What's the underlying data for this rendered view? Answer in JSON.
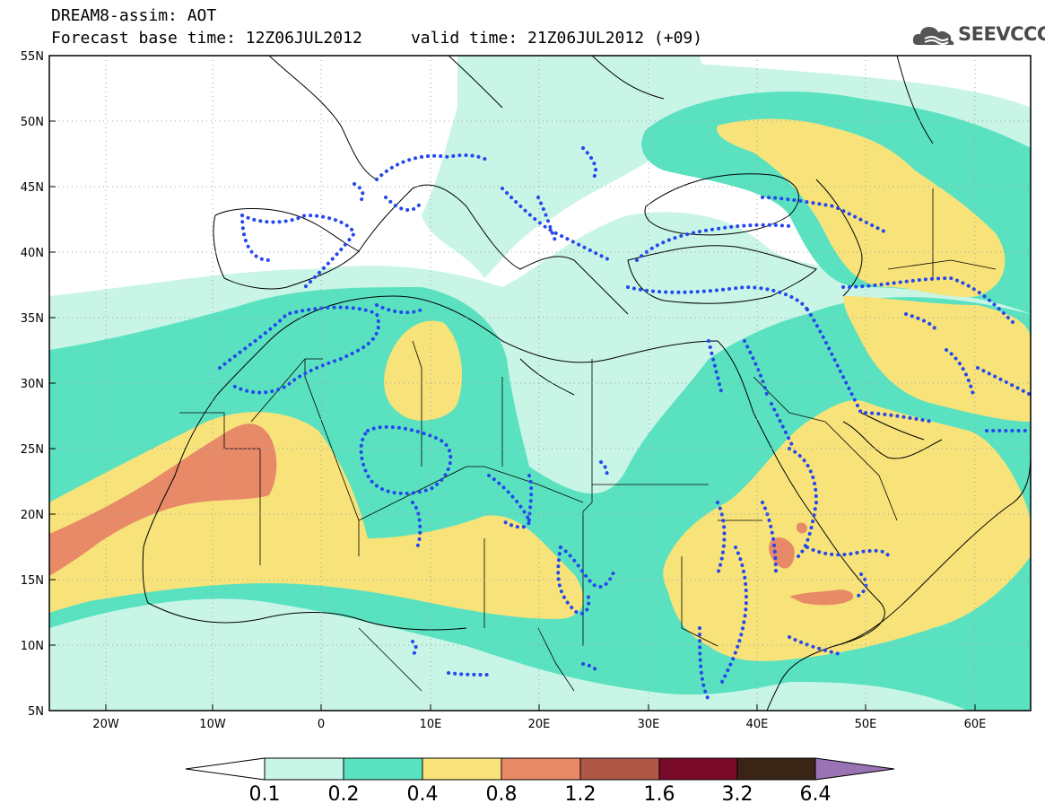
{
  "header": {
    "line1": "DREAM8-assim: AOT",
    "line2": "Forecast base time: 12Z06JUL2012     valid time: 21Z06JUL2012 (+09)",
    "logo_text": "SEEVCCC"
  },
  "map": {
    "lat_range": [
      5,
      55
    ],
    "lon_range": [
      -25,
      65
    ],
    "lat_labels": [
      "55N",
      "50N",
      "45N",
      "40N",
      "35N",
      "30N",
      "25N",
      "20N",
      "15N",
      "10N",
      "5N"
    ],
    "lon_labels": [
      "20W",
      "10W",
      "0",
      "10E",
      "20E",
      "30E",
      "40E",
      "50E",
      "60E"
    ],
    "grid": "dotted"
  },
  "legend": {
    "labels": [
      "0.1",
      "0.2",
      "0.4",
      "0.8",
      "1.2",
      "1.6",
      "3.2",
      "6.4"
    ],
    "colors": [
      "#ffffff",
      "#c8f5e6",
      "#5ae2c0",
      "#f7e37a",
      "#e88968",
      "#b05748",
      "#7a0a2a",
      "#3a2414",
      "#9a73b5"
    ]
  },
  "colors": {
    "class_01_02": "#c8f5e6",
    "class_02_04": "#5ae2c0",
    "class_04_08": "#f7e37a",
    "class_08_12": "#e88968",
    "obs_dots": "#2548ee"
  }
}
